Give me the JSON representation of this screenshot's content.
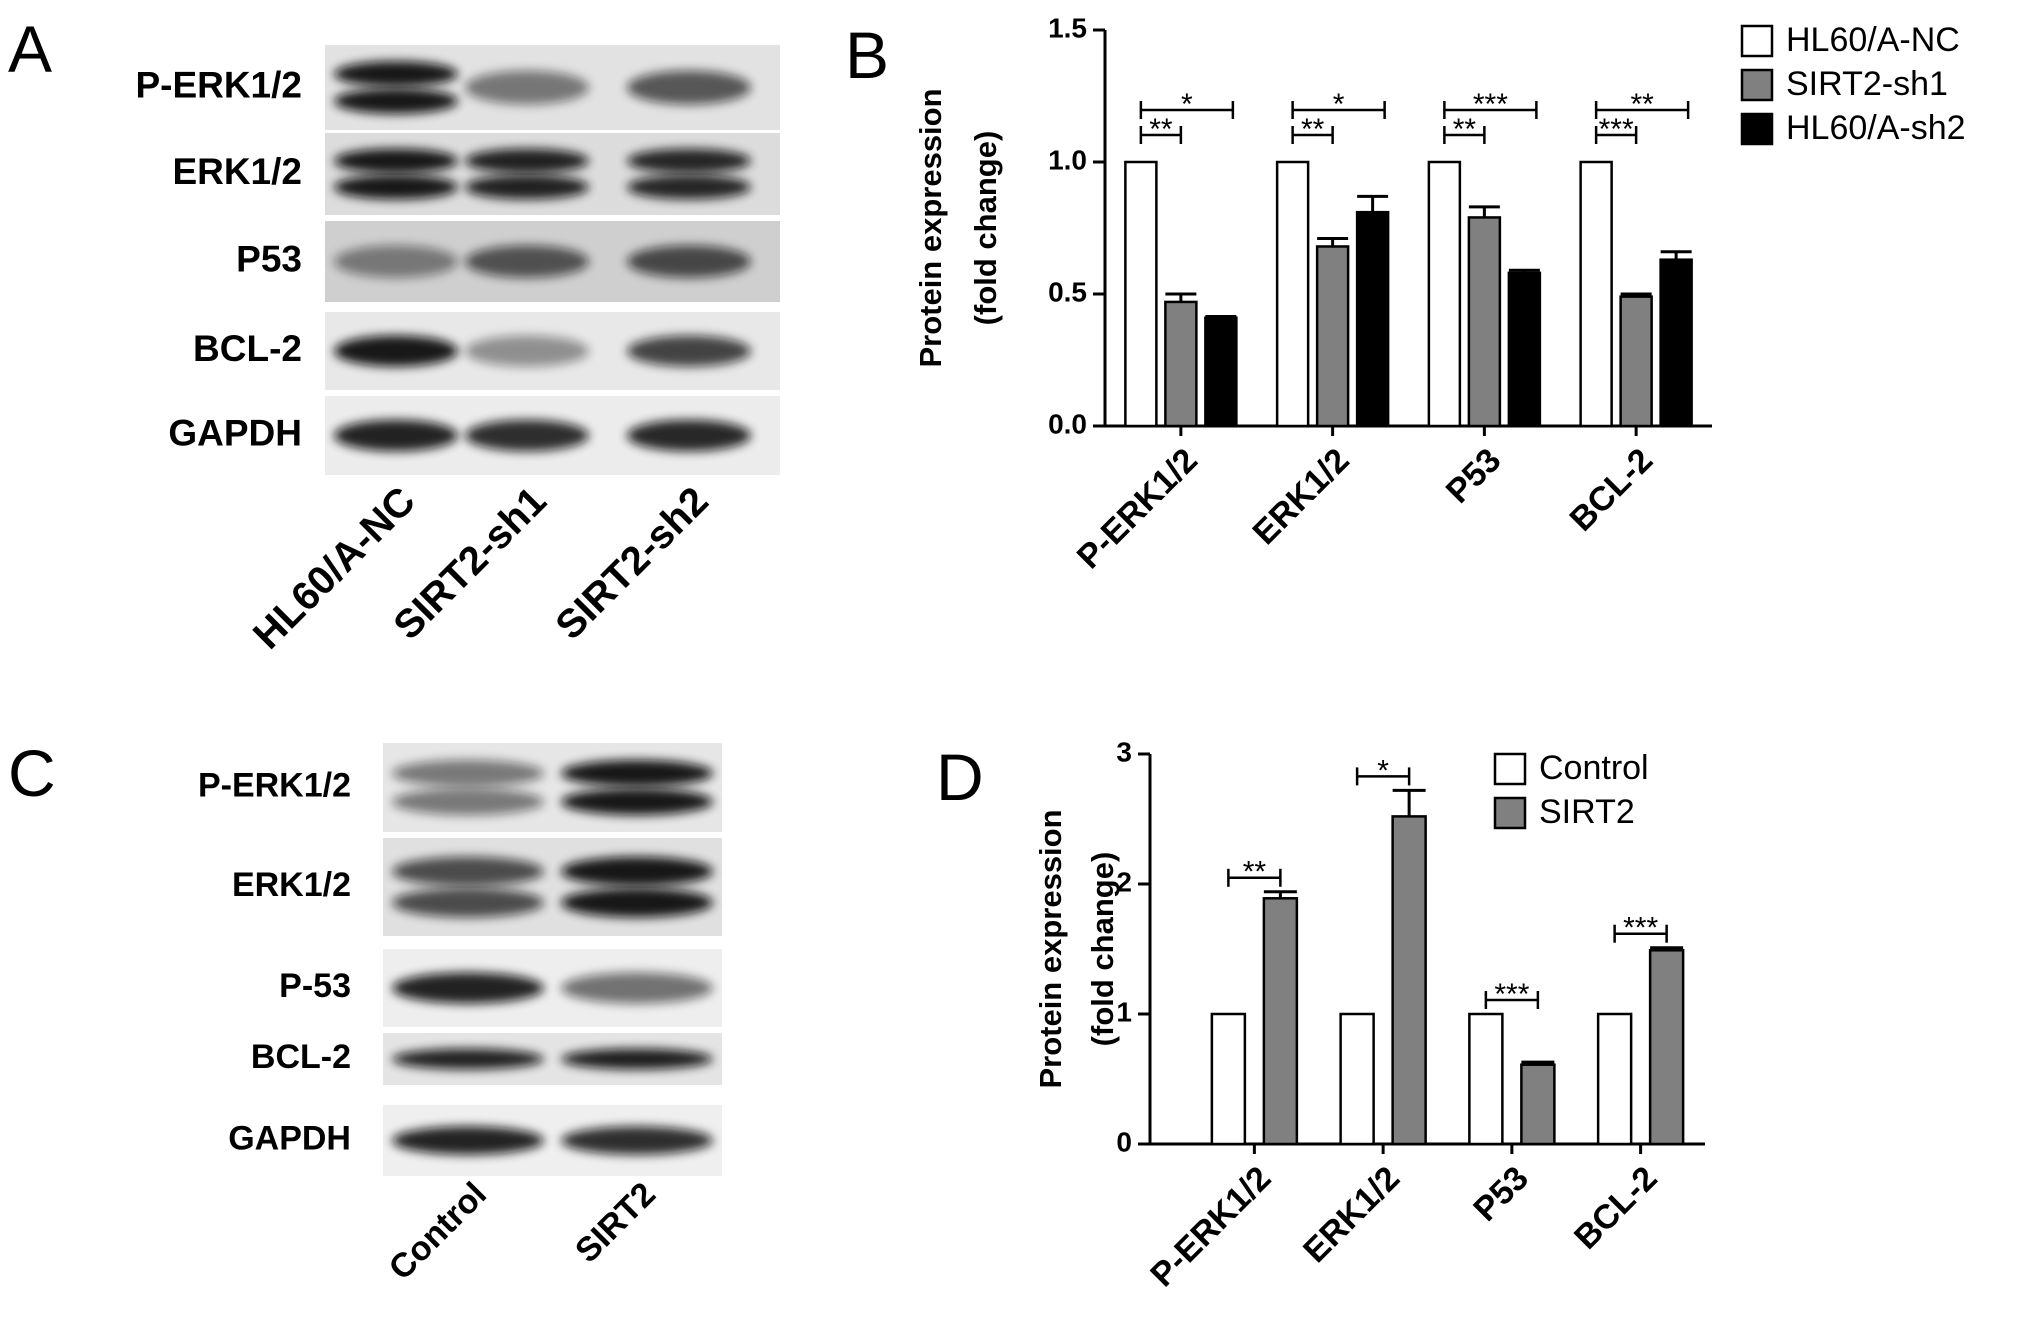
{
  "panel_a": {
    "letter": "A",
    "rows": [
      "P-ERK1/2",
      "ERK1/2",
      "P53",
      "BCL-2",
      "GAPDH"
    ],
    "lanes": [
      "HL60/A-NC",
      "SIRT2-sh1",
      "SIRT2-sh2"
    ]
  },
  "panel_c": {
    "letter": "C",
    "rows": [
      "P-ERK1/2",
      "ERK1/2",
      "P-53",
      "BCL-2",
      "GAPDH"
    ],
    "lanes": [
      "Control",
      "SIRT2"
    ]
  },
  "chart_data": [
    {
      "type": "bar",
      "letter": "B",
      "ylabel": [
        "Protein expression",
        "(fold change)"
      ],
      "categories": [
        "P-ERK1/2",
        "ERK1/2",
        "P53",
        "BCL-2"
      ],
      "series": [
        {
          "name": "HL60/A-NC",
          "color": "#ffffff",
          "values": [
            1,
            1,
            1,
            1
          ]
        },
        {
          "name": "SIRT2-sh1",
          "color": "#808080",
          "values": [
            0.47,
            0.68,
            0.79,
            0.49
          ],
          "errors": [
            0.03,
            0.03,
            0.04,
            0.01
          ]
        },
        {
          "name": "HL60/A-sh2",
          "color": "#000000",
          "values": [
            0.41,
            0.81,
            0.58,
            0.63
          ],
          "errors": [
            0.005,
            0.06,
            0.01,
            0.03
          ]
        }
      ],
      "ylim": [
        0,
        1.5
      ],
      "yticks": [
        {
          "value": 0,
          "label": "0.0"
        },
        {
          "value": 0.5,
          "label": "0.5"
        },
        {
          "value": 1,
          "label": "1.0"
        },
        {
          "value": 1.5,
          "label": "1.5"
        }
      ],
      "legend": "outside upper right",
      "annotations": [
        {
          "label": "*",
          "category": "P-ERK1/2",
          "between": [
            "HL60/A-NC",
            "HL60/A-sh2"
          ]
        },
        {
          "label": "**",
          "category": "P-ERK1/2",
          "between": [
            "HL60/A-NC",
            "SIRT2-sh1"
          ]
        },
        {
          "label": "*",
          "category": "ERK1/2",
          "between": [
            "HL60/A-NC",
            "HL60/A-sh2"
          ]
        },
        {
          "label": "**",
          "category": "ERK1/2",
          "between": [
            "HL60/A-NC",
            "SIRT2-sh1"
          ]
        },
        {
          "label": "***",
          "category": "P53",
          "between": [
            "HL60/A-NC",
            "HL60/A-sh2"
          ]
        },
        {
          "label": "**",
          "category": "P53",
          "between": [
            "HL60/A-NC",
            "SIRT2-sh1"
          ]
        },
        {
          "label": "**",
          "category": "BCL-2",
          "between": [
            "HL60/A-NC",
            "HL60/A-sh2"
          ]
        },
        {
          "label": "***",
          "category": "BCL-2",
          "between": [
            "HL60/A-NC",
            "SIRT2-sh1"
          ]
        }
      ]
    },
    {
      "type": "bar",
      "letter": "D",
      "ylabel": [
        "Protein expression",
        "(fold change)"
      ],
      "categories": [
        "P-ERK1/2",
        "ERK1/2",
        "P53",
        "BCL-2"
      ],
      "series": [
        {
          "name": "Control",
          "color": "#ffffff",
          "values": [
            1,
            1,
            1,
            1
          ]
        },
        {
          "name": "SIRT2",
          "color": "#808080",
          "values": [
            1.89,
            2.52,
            0.61,
            1.49
          ],
          "errors": [
            0.05,
            0.2,
            0.02,
            0.02
          ]
        }
      ],
      "ylim": [
        0,
        3
      ],
      "yticks": [
        0,
        1,
        2,
        3
      ],
      "legend": "upper right",
      "annotations": [
        {
          "label": "**",
          "category": "P-ERK1/2",
          "between": [
            "Control",
            "SIRT2"
          ]
        },
        {
          "label": "*",
          "category": "ERK1/2",
          "between": [
            "Control",
            "SIRT2"
          ]
        },
        {
          "label": "***",
          "category": "P53",
          "between": [
            "Control",
            "SIRT2"
          ]
        },
        {
          "label": "***",
          "category": "BCL-2",
          "between": [
            "Control",
            "SIRT2"
          ]
        }
      ]
    }
  ]
}
